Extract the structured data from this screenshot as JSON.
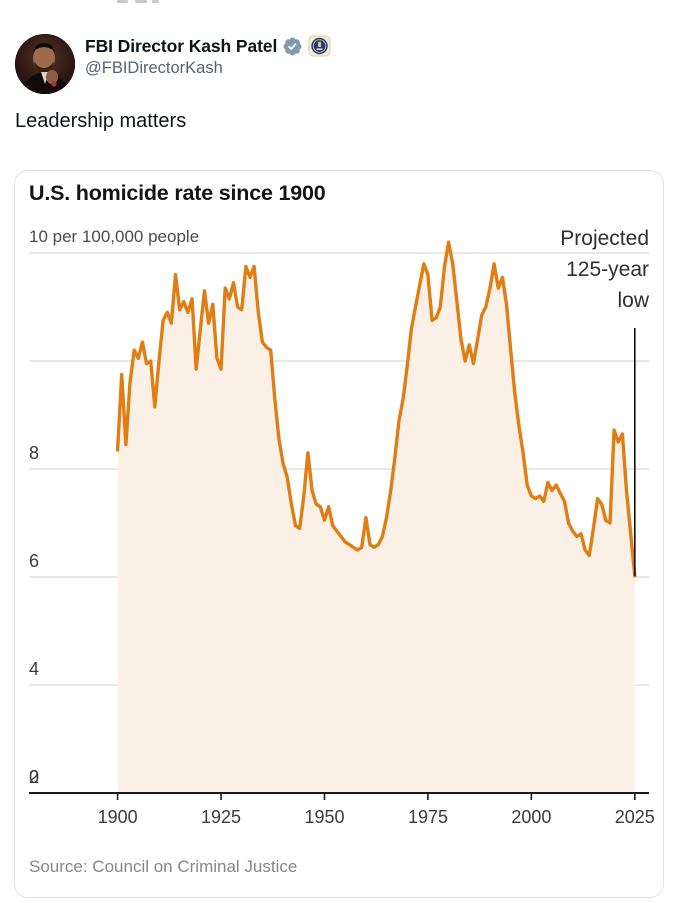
{
  "tweet": {
    "author": {
      "name": "FBI Director Kash Patel",
      "handle": "@FBIDirectorKash",
      "verified_badge": "gray-government-checkmark",
      "verified_color": "#829AAB",
      "emoji_badge": "fbi-seal"
    },
    "text": "Leadership matters"
  },
  "chart_card": {
    "title": "U.S. homicide rate since 1900",
    "unit_label": "10 per 100,000 people",
    "annotation": {
      "line1": "Projected",
      "line2": "125-year",
      "line3": "low"
    },
    "y_ticks": [
      "8",
      "6",
      "4",
      "2",
      "0"
    ],
    "x_ticks": [
      "1900",
      "1925",
      "1950",
      "1975",
      "2000",
      "2025"
    ],
    "source": "Source: Council on Criminal Justice"
  },
  "chart_data": {
    "type": "area",
    "title": "U.S. homicide rate since 1900",
    "ylabel": "10 per 100,000 people",
    "xlabel": "",
    "x_years": {
      "start": 1900,
      "end": 2025,
      "step": 1
    },
    "values": [
      6.35,
      7.75,
      6.45,
      7.6,
      8.2,
      8.05,
      8.35,
      7.95,
      8.0,
      7.15,
      8.0,
      8.75,
      8.9,
      8.7,
      9.6,
      8.95,
      9.1,
      8.9,
      9.15,
      7.85,
      8.6,
      9.3,
      8.7,
      9.05,
      8.05,
      7.85,
      9.35,
      9.15,
      9.45,
      9.0,
      8.95,
      9.75,
      9.55,
      9.75,
      8.9,
      8.35,
      8.25,
      8.2,
      7.3,
      6.55,
      6.1,
      5.85,
      5.35,
      4.95,
      4.9,
      5.5,
      6.3,
      5.6,
      5.35,
      5.3,
      5.05,
      5.3,
      4.95,
      4.85,
      4.75,
      4.65,
      4.6,
      4.55,
      4.5,
      4.55,
      5.1,
      4.6,
      4.55,
      4.6,
      4.75,
      5.1,
      5.6,
      6.2,
      6.9,
      7.3,
      7.9,
      8.6,
      9.0,
      9.4,
      9.8,
      9.6,
      8.75,
      8.8,
      9.0,
      9.75,
      10.2,
      9.8,
      9.1,
      8.4,
      8.0,
      8.3,
      7.95,
      8.4,
      8.85,
      9.0,
      9.35,
      9.8,
      9.35,
      9.55,
      9.05,
      8.2,
      7.4,
      6.8,
      6.3,
      5.7,
      5.5,
      5.45,
      5.5,
      5.4,
      5.75,
      5.6,
      5.7,
      5.55,
      5.4,
      5.0,
      4.85,
      4.75,
      4.8,
      4.5,
      4.4,
      4.9,
      5.45,
      5.35,
      5.05,
      5.0,
      6.72,
      6.5,
      6.65,
      5.6,
      4.8,
      4.02
    ],
    "ylim": [
      0,
      10.8
    ],
    "grid_y": [
      2,
      4,
      6,
      8,
      10
    ],
    "x_tick_years": [
      1900,
      1925,
      1950,
      1975,
      2000,
      2025
    ],
    "legend": "none",
    "line_color": "#DE7E15",
    "fill_color": "#FBF0E6",
    "grid_color": "#D9D9D9",
    "axis_color": "#1A1A1A",
    "marker": {
      "year": 2025,
      "value": 4.02,
      "label": "Projected 125-year low",
      "color": "#111111"
    }
  }
}
